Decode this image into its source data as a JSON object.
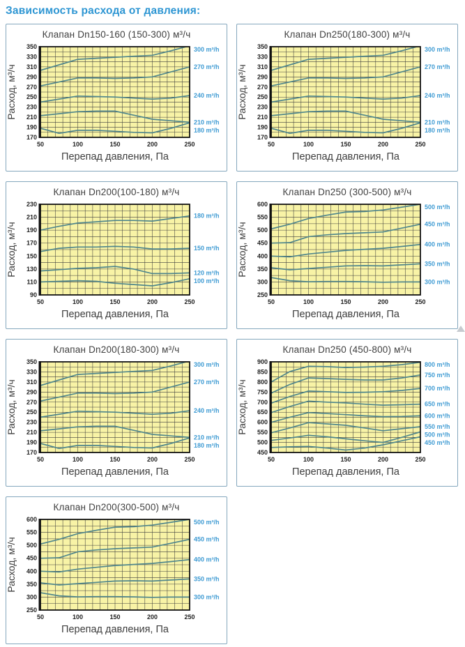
{
  "page": {
    "heading": "Зависимость расхода от давления:"
  },
  "colors": {
    "heading": "#2e96d3",
    "panel_border": "#84a7bd",
    "title_text": "#404040",
    "plot_bg": "#f8f3a6",
    "grid": "#3c3c3c",
    "frame": "#111111",
    "line": "#4f868c",
    "tick_text": "#222222",
    "axis_label_text": "#3d3d3d",
    "legend_blue": "#3f9bd3"
  },
  "chart_data": [
    {
      "type": "line",
      "title": "Клапан Dn150-160 (150-300) м³/ч",
      "xlabel": "Перепад давления, Па",
      "ylabel": "Расход, м³/ч",
      "xlim": [
        50,
        250
      ],
      "ylim": [
        170,
        350
      ],
      "xticks": [
        50,
        100,
        150,
        200,
        250
      ],
      "yticks": [
        170,
        190,
        210,
        230,
        250,
        270,
        290,
        310,
        330,
        350
      ],
      "x_minor_step": 10,
      "y_minor_step": 10,
      "grid": true,
      "legend_position": "right",
      "x": [
        50,
        75,
        100,
        125,
        150,
        175,
        200,
        225,
        250
      ],
      "series": [
        {
          "name": "300 m³/h",
          "values": [
            303,
            314,
            325,
            327,
            329,
            331,
            333,
            342,
            352
          ]
        },
        {
          "name": "270 m³/h",
          "values": [
            272,
            280,
            288,
            288,
            287,
            288,
            290,
            300,
            310
          ]
        },
        {
          "name": "240 m³/h",
          "values": [
            240,
            246,
            252,
            251,
            250,
            248,
            246,
            248,
            253
          ]
        },
        {
          "name": "210 m³/h",
          "values": [
            213,
            217,
            221,
            222,
            222,
            214,
            206,
            203,
            200
          ]
        },
        {
          "name": "180 m³/h",
          "values": [
            188,
            178,
            184,
            184,
            182,
            180,
            179,
            188,
            199
          ]
        }
      ]
    },
    {
      "type": "line",
      "title": "Клапан Dn250(180-300) м³/ч",
      "xlabel": "Перепад давления, Па",
      "ylabel": "Расход, м³/ч",
      "xlim": [
        50,
        250
      ],
      "ylim": [
        170,
        350
      ],
      "xticks": [
        50,
        100,
        150,
        200,
        250
      ],
      "yticks": [
        170,
        190,
        210,
        230,
        250,
        270,
        290,
        310,
        330,
        350
      ],
      "x_minor_step": 10,
      "y_minor_step": 10,
      "grid": true,
      "legend_position": "right",
      "x": [
        50,
        75,
        100,
        125,
        150,
        175,
        200,
        225,
        250
      ],
      "series": [
        {
          "name": "300 m³/h",
          "values": [
            303,
            314,
            325,
            327,
            329,
            331,
            333,
            342,
            352
          ]
        },
        {
          "name": "270 m³/h",
          "values": [
            272,
            280,
            288,
            288,
            287,
            288,
            290,
            300,
            310
          ]
        },
        {
          "name": "240 m³/h",
          "values": [
            240,
            246,
            252,
            251,
            250,
            248,
            246,
            248,
            253
          ]
        },
        {
          "name": "210 m³/h",
          "values": [
            213,
            217,
            221,
            222,
            222,
            214,
            206,
            203,
            200
          ]
        },
        {
          "name": "180 m³/h",
          "values": [
            188,
            178,
            184,
            184,
            182,
            180,
            179,
            188,
            199
          ]
        }
      ]
    },
    {
      "type": "line",
      "title": "Клапан Dn200(100-180) м³/ч",
      "xlabel": "Перепад давления, Па",
      "ylabel": "Расход, м³/ч",
      "xlim": [
        50,
        250
      ],
      "ylim": [
        90,
        230
      ],
      "xticks": [
        50,
        100,
        150,
        200,
        250
      ],
      "yticks": [
        90,
        110,
        130,
        150,
        170,
        190,
        210,
        230
      ],
      "x_minor_step": 10,
      "y_minor_step": 10,
      "grid": true,
      "legend_position": "right",
      "x": [
        50,
        75,
        100,
        125,
        150,
        175,
        200,
        225,
        250
      ],
      "series": [
        {
          "name": "180 m³/h",
          "values": [
            190,
            196,
            201,
            203,
            205,
            205,
            204,
            208,
            212
          ]
        },
        {
          "name": "150 m³/h",
          "values": [
            157,
            162,
            164,
            164,
            165,
            164,
            161,
            161,
            162
          ]
        },
        {
          "name": "120 m³/h",
          "values": [
            127,
            129,
            131,
            132,
            134,
            130,
            123,
            123,
            124
          ]
        },
        {
          "name": "100 m³/h",
          "values": [
            110,
            111,
            112,
            111,
            108,
            106,
            104,
            109,
            115
          ]
        }
      ]
    },
    {
      "type": "line",
      "title": "Клапан Dn250 (300-500) м³/ч",
      "xlabel": "Перепад давления, Па",
      "ylabel": "Расход, м³/ч",
      "xlim": [
        50,
        250
      ],
      "ylim": [
        250,
        600
      ],
      "xticks": [
        50,
        100,
        150,
        200,
        250
      ],
      "yticks": [
        250,
        300,
        350,
        400,
        450,
        500,
        550,
        600
      ],
      "x_minor_step": 10,
      "y_minor_step": 25,
      "grid": true,
      "legend_position": "right",
      "x": [
        50,
        75,
        100,
        125,
        150,
        175,
        200,
        225,
        250
      ],
      "series": [
        {
          "name": "500 m³/h",
          "values": [
            505,
            523,
            545,
            558,
            570,
            572,
            578,
            589,
            600
          ]
        },
        {
          "name": "450 m³/h",
          "values": [
            450,
            452,
            475,
            482,
            487,
            490,
            493,
            508,
            523
          ]
        },
        {
          "name": "400 m³/h",
          "values": [
            400,
            397,
            408,
            415,
            422,
            426,
            430,
            437,
            445
          ]
        },
        {
          "name": "350 m³/h",
          "values": [
            355,
            347,
            352,
            357,
            362,
            363,
            362,
            366,
            370
          ]
        },
        {
          "name": "300 m³/h",
          "values": [
            317,
            305,
            301,
            302,
            302,
            301,
            299,
            300,
            300
          ]
        }
      ]
    },
    {
      "type": "line",
      "title": "Клапан Dn200(180-300) м³/ч",
      "xlabel": "Перепад давления, Па",
      "ylabel": "Расход, м³/ч",
      "xlim": [
        50,
        250
      ],
      "ylim": [
        170,
        350
      ],
      "xticks": [
        50,
        100,
        150,
        200,
        250
      ],
      "yticks": [
        170,
        190,
        210,
        230,
        250,
        270,
        290,
        310,
        330,
        350
      ],
      "x_minor_step": 10,
      "y_minor_step": 10,
      "grid": true,
      "legend_position": "right",
      "x": [
        50,
        75,
        100,
        125,
        150,
        175,
        200,
        225,
        250
      ],
      "series": [
        {
          "name": "300 m³/h",
          "values": [
            303,
            314,
            325,
            327,
            329,
            331,
            333,
            342,
            352
          ]
        },
        {
          "name": "270 m³/h",
          "values": [
            272,
            280,
            288,
            288,
            287,
            288,
            290,
            300,
            310
          ]
        },
        {
          "name": "240 m³/h",
          "values": [
            240,
            246,
            252,
            251,
            250,
            248,
            246,
            248,
            253
          ]
        },
        {
          "name": "210 m³/h",
          "values": [
            213,
            217,
            221,
            222,
            222,
            214,
            206,
            203,
            200
          ]
        },
        {
          "name": "180 m³/h",
          "values": [
            188,
            178,
            184,
            184,
            182,
            180,
            179,
            188,
            199
          ]
        }
      ]
    },
    {
      "type": "line",
      "title": "Клапан Dn250 (450-800) м³/ч",
      "xlabel": "Перепад давления, Па",
      "ylabel": "Расход, м³/ч",
      "xlim": [
        50,
        250
      ],
      "ylim": [
        450,
        900
      ],
      "xticks": [
        50,
        100,
        150,
        200,
        250
      ],
      "yticks": [
        450,
        500,
        550,
        600,
        650,
        700,
        750,
        800,
        850,
        900
      ],
      "x_minor_step": 10,
      "y_minor_step": 25,
      "grid": true,
      "legend_position": "right",
      "x": [
        50,
        75,
        100,
        125,
        150,
        175,
        200,
        225,
        250
      ],
      "series": [
        {
          "name": "800 m³/h",
          "values": [
            800,
            852,
            878,
            876,
            872,
            874,
            878,
            886,
            898
          ]
        },
        {
          "name": "750 m³/h",
          "values": [
            745,
            788,
            820,
            817,
            813,
            810,
            810,
            820,
            835
          ]
        },
        {
          "name": "700 m³/h",
          "values": [
            695,
            728,
            755,
            752,
            748,
            749,
            752,
            758,
            768
          ]
        },
        {
          "name": "650 m³/h",
          "values": [
            648,
            678,
            705,
            700,
            696,
            690,
            685,
            687,
            690
          ]
        },
        {
          "name": "600 m³/h",
          "values": [
            600,
            625,
            648,
            643,
            638,
            632,
            628,
            629,
            632
          ]
        },
        {
          "name": "550 m³/h",
          "values": [
            548,
            572,
            598,
            592,
            585,
            572,
            558,
            568,
            578
          ]
        },
        {
          "name": "500 m³/h",
          "values": [
            510,
            522,
            535,
            528,
            518,
            508,
            500,
            525,
            552
          ]
        },
        {
          "name": "450 m³/h",
          "values": [
            475,
            478,
            480,
            472,
            462,
            472,
            488,
            508,
            528
          ]
        }
      ]
    },
    {
      "type": "line",
      "title": "Клапан Dn200(300-500) м³/ч",
      "xlabel": "Перепад давления, Па",
      "ylabel": "Расход, м³/ч",
      "xlim": [
        50,
        250
      ],
      "ylim": [
        250,
        600
      ],
      "xticks": [
        50,
        100,
        150,
        200,
        250
      ],
      "yticks": [
        250,
        300,
        350,
        400,
        450,
        500,
        550,
        600
      ],
      "x_minor_step": 10,
      "y_minor_step": 25,
      "grid": true,
      "legend_position": "right",
      "x": [
        50,
        75,
        100,
        125,
        150,
        175,
        200,
        225,
        250
      ],
      "series": [
        {
          "name": "500 m³/h",
          "values": [
            505,
            523,
            545,
            558,
            570,
            572,
            578,
            589,
            600
          ]
        },
        {
          "name": "450 m³/h",
          "values": [
            450,
            452,
            475,
            482,
            487,
            490,
            493,
            508,
            523
          ]
        },
        {
          "name": "400 m³/h",
          "values": [
            400,
            397,
            408,
            415,
            422,
            426,
            430,
            437,
            445
          ]
        },
        {
          "name": "350 m³/h",
          "values": [
            355,
            347,
            352,
            357,
            362,
            363,
            362,
            366,
            370
          ]
        },
        {
          "name": "300 m³/h",
          "values": [
            317,
            305,
            301,
            302,
            302,
            301,
            299,
            300,
            300
          ]
        }
      ]
    }
  ]
}
